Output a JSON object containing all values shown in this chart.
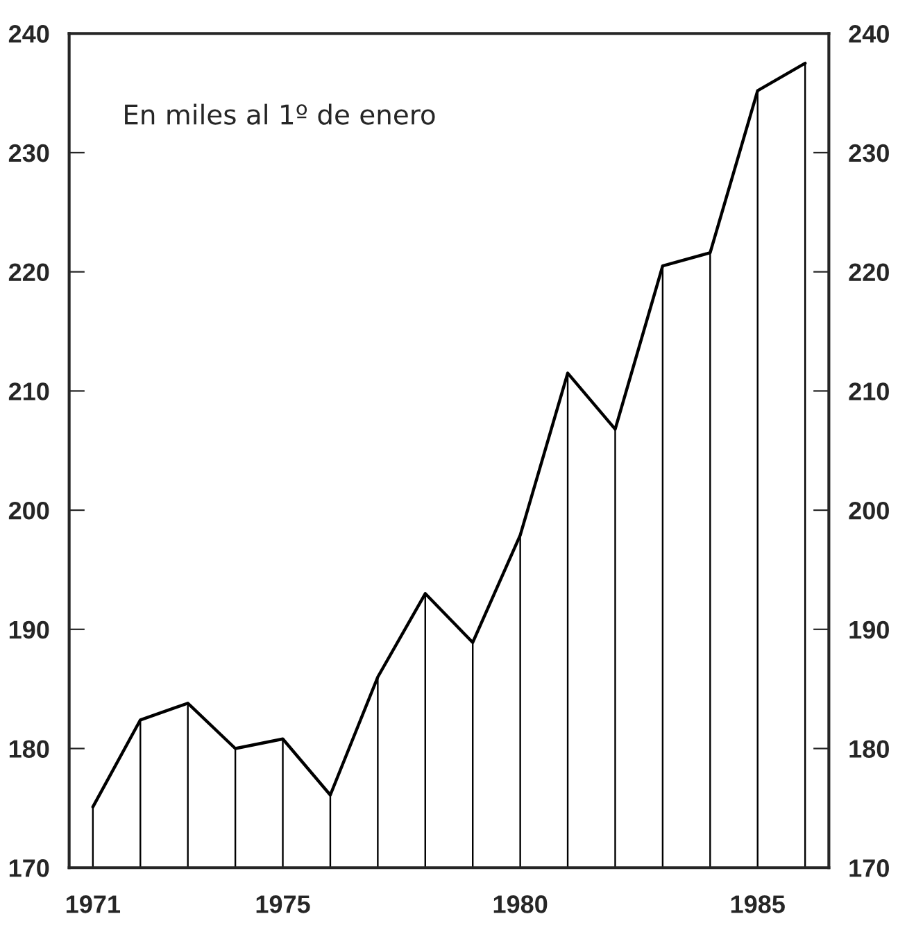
{
  "chart_data": {
    "type": "line",
    "x": [
      1971,
      1972,
      1973,
      1974,
      1975,
      1976,
      1977,
      1978,
      1979,
      1980,
      1981,
      1982,
      1983,
      1984,
      1985,
      1986
    ],
    "series": [
      {
        "color": "#000000",
        "values": [
          175.1,
          182.4,
          183.8,
          180.0,
          180.8,
          176.1,
          186.0,
          193.0,
          188.9,
          197.9,
          211.5,
          206.8,
          220.5,
          221.6,
          235.2,
          237.5
        ]
      },
      {
        "type": "bar",
        "color": "#000000",
        "values": [
          175.1,
          182.4,
          183.8,
          180.0,
          180.8,
          176.1,
          186.0,
          193.0,
          188.9,
          197.9,
          211.5,
          206.8,
          220.5,
          221.6,
          235.2,
          237.5
        ]
      }
    ],
    "annotations": [
      "En miles al 1º de enero"
    ],
    "xlim": [
      1970.5,
      1986.5
    ],
    "xticks": [
      1971,
      1975,
      1980,
      1985
    ],
    "ylim": [
      170,
      240
    ],
    "yticks": [
      170,
      180,
      190,
      200,
      210,
      220,
      230,
      240
    ],
    "y2lim": [
      170,
      240
    ],
    "y2ticks": [
      170,
      180,
      190,
      200,
      210,
      220,
      230,
      240
    ],
    "grid": false,
    "legend": false,
    "marker": "none",
    "line_style": "solid"
  }
}
